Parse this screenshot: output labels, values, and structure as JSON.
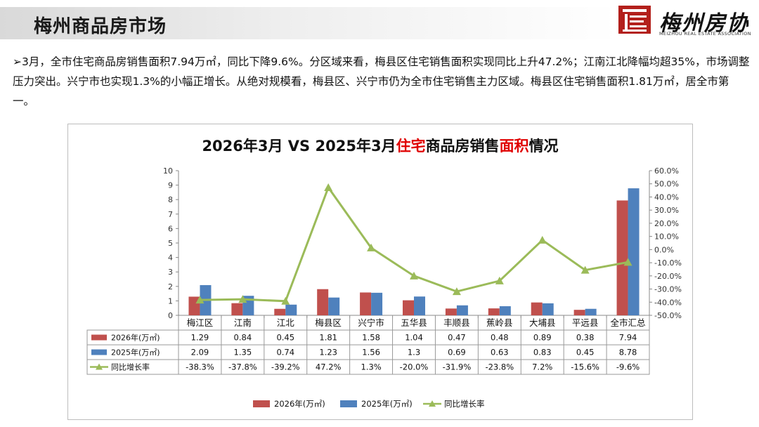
{
  "header": {
    "title": "梅州商品房市场",
    "logo_text": "梅州房协",
    "logo_subtext": "MEIZHOU REAL ESTATE ASSOCIATION"
  },
  "summary": {
    "bullet": "➢",
    "text": "3月，全市住宅商品房销售面积7.94万㎡，同比下降9.6%。分区域来看，梅县区住宅销售面积实现同比上升47.2%；江南江北降幅均超35%，市场调整压力突出。兴宁市也实现1.3%的小幅正增长。从绝对规模看，梅县区、兴宁市仍为全市住宅销售主力区域。梅县区住宅销售面积1.81万㎡，居全市第一。"
  },
  "chart_data": {
    "type": "bar",
    "title": {
      "part1": "2026年3月 VS 2025年3月",
      "part2": "住宅",
      "part3": "商品房销售",
      "part4": "面积",
      "part5": "情况"
    },
    "categories": [
      "梅江区",
      "江南",
      "江北",
      "梅县区",
      "兴宁市",
      "五华县",
      "丰顺县",
      "蕉岭县",
      "大埔县",
      "平远县",
      "全市汇总"
    ],
    "series": [
      {
        "name": "2026年(万㎡)",
        "kind": "bar",
        "axis": "left",
        "color": "#c0504d",
        "values": [
          1.29,
          0.84,
          0.45,
          1.81,
          1.58,
          1.04,
          0.47,
          0.48,
          0.89,
          0.38,
          7.94
        ],
        "labels": [
          "1.29",
          "0.84",
          "0.45",
          "1.81",
          "1.58",
          "1.04",
          "0.47",
          "0.48",
          "0.89",
          "0.38",
          "7.94"
        ]
      },
      {
        "name": "2025年(万㎡)",
        "kind": "bar",
        "axis": "left",
        "color": "#4f81bd",
        "values": [
          2.09,
          1.35,
          0.74,
          1.23,
          1.56,
          1.3,
          0.69,
          0.63,
          0.83,
          0.45,
          8.78
        ],
        "labels": [
          "2.09",
          "1.35",
          "0.74",
          "1.23",
          "1.56",
          "1.3",
          "0.69",
          "0.63",
          "0.83",
          "0.45",
          "8.78"
        ]
      },
      {
        "name": "同比增长率",
        "kind": "line",
        "axis": "right",
        "color": "#9bbb59",
        "values": [
          -38.3,
          -37.8,
          -39.2,
          47.2,
          1.3,
          -20.0,
          -31.9,
          -23.8,
          7.2,
          -15.6,
          -9.6
        ],
        "labels": [
          "-38.3%",
          "-37.8%",
          "-39.2%",
          "47.2%",
          "1.3%",
          "-20.0%",
          "-31.9%",
          "-23.8%",
          "7.2%",
          "-15.6%",
          "-9.6%"
        ]
      }
    ],
    "y_left": {
      "min": 0,
      "max": 10,
      "ticks": [
        "0",
        "1",
        "2",
        "3",
        "4",
        "5",
        "6",
        "7",
        "8",
        "9",
        "10"
      ]
    },
    "y_right": {
      "min": -50,
      "max": 60,
      "ticks": [
        "-50.0%",
        "-40.0%",
        "-30.0%",
        "-20.0%",
        "-10.0%",
        "0.0%",
        "10.0%",
        "20.0%",
        "30.0%",
        "40.0%",
        "50.0%",
        "60.0%"
      ]
    },
    "legend_position": "bottom",
    "data_table": true,
    "grid": false
  }
}
